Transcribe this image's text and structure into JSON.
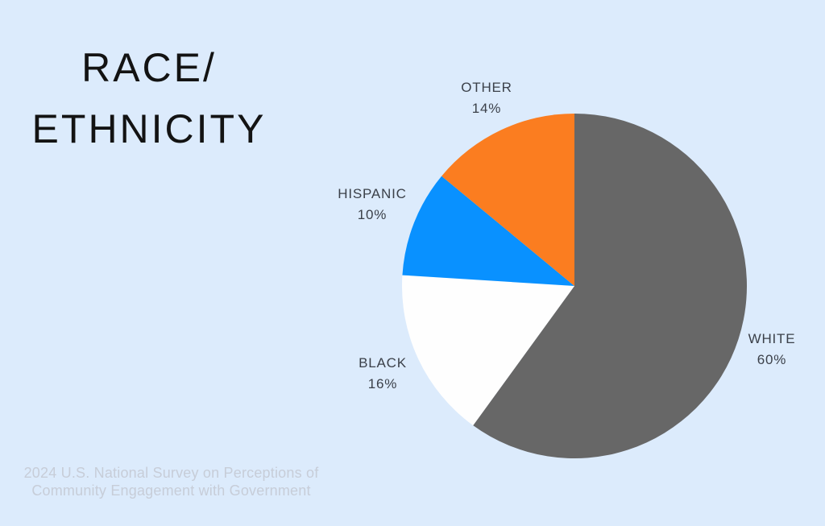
{
  "title": {
    "line1": "RACE/",
    "line2": "ETHNICITY"
  },
  "source": {
    "line1": "2024 U.S. National Survey on Perceptions of",
    "line2": "Community Engagement with Government"
  },
  "colors": {
    "background": "#dcebfc",
    "title_text": "#131313",
    "label_text": "#3b4049",
    "source_text": "#c7cdd8",
    "slice_white": "#676767",
    "slice_black": "#fefefe",
    "slice_hispanic": "#0991ff",
    "slice_other": "#fb7d20"
  },
  "chart_data": {
    "type": "pie",
    "title": "RACE/ETHNICITY",
    "categories": [
      "WHITE",
      "BLACK",
      "HISPANIC",
      "OTHER"
    ],
    "values": [
      60,
      16,
      10,
      14
    ],
    "unit": "%",
    "start_angle_deg": 0,
    "direction": "clockwise",
    "legend_position": "none",
    "labels_outside": true,
    "slices": [
      {
        "label": "WHITE",
        "value": 60,
        "value_text": "60%",
        "color": "#676767"
      },
      {
        "label": "BLACK",
        "value": 16,
        "value_text": "16%",
        "color": "#fefefe"
      },
      {
        "label": "HISPANIC",
        "value": 10,
        "value_text": "10%",
        "color": "#0991ff"
      },
      {
        "label": "OTHER",
        "value": 14,
        "value_text": "14%",
        "color": "#fb7d20"
      }
    ]
  }
}
